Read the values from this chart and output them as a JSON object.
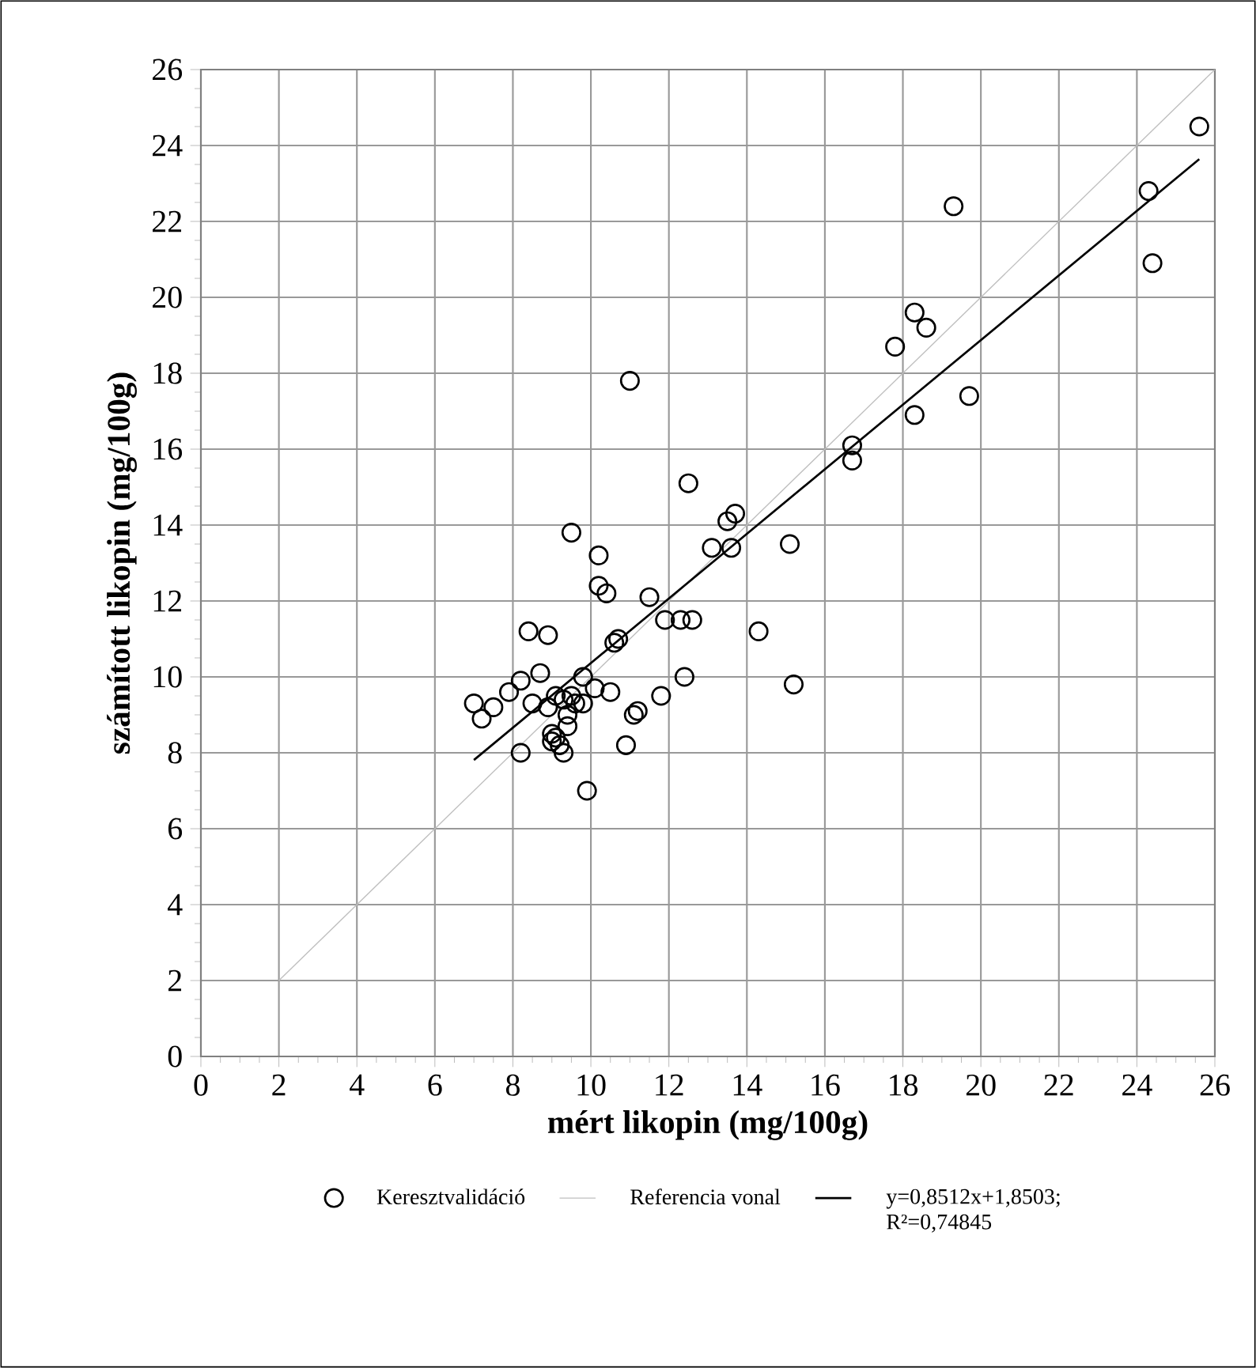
{
  "chart_data": {
    "type": "scatter",
    "xlabel": "mért likopin (mg/100g)",
    "ylabel": "számított likopin (mg/100g)",
    "xlim": [
      0,
      26
    ],
    "ylim": [
      0,
      26
    ],
    "xticks": [
      0,
      2,
      4,
      6,
      8,
      10,
      12,
      14,
      16,
      18,
      20,
      22,
      24,
      26
    ],
    "yticks": [
      0,
      2,
      4,
      6,
      8,
      10,
      12,
      14,
      16,
      18,
      20,
      22,
      24,
      26
    ],
    "grid": true,
    "legend": "bottom",
    "series": [
      {
        "name": "Keresztvalidáció",
        "type": "scatter",
        "marker": "circle",
        "color": "#000000",
        "x": [
          7.0,
          7.2,
          7.5,
          7.9,
          8.2,
          8.2,
          8.4,
          8.5,
          8.7,
          8.9,
          8.9,
          9.0,
          9.0,
          9.1,
          9.1,
          9.2,
          9.3,
          9.3,
          9.4,
          9.4,
          9.5,
          9.5,
          9.6,
          9.8,
          9.8,
          9.9,
          10.1,
          10.2,
          10.2,
          10.4,
          10.5,
          10.6,
          10.7,
          10.9,
          11.0,
          11.1,
          11.2,
          11.5,
          11.8,
          11.9,
          12.3,
          12.4,
          12.5,
          12.6,
          13.1,
          13.5,
          13.6,
          13.7,
          14.3,
          15.1,
          15.2,
          16.7,
          16.7,
          17.8,
          18.3,
          18.3,
          18.6,
          19.3,
          19.7,
          24.3,
          24.4,
          25.6
        ],
        "values": [
          9.3,
          8.9,
          9.2,
          9.6,
          9.9,
          8.0,
          11.2,
          9.3,
          10.1,
          11.1,
          9.2,
          8.5,
          8.3,
          8.4,
          9.5,
          8.2,
          8.0,
          9.4,
          9.0,
          8.7,
          9.5,
          13.8,
          9.3,
          10.0,
          9.3,
          7.0,
          9.7,
          13.2,
          12.4,
          12.2,
          9.6,
          10.9,
          11.0,
          8.2,
          17.8,
          9.0,
          9.1,
          12.1,
          9.5,
          11.5,
          11.5,
          10.0,
          15.1,
          11.5,
          13.4,
          14.1,
          13.4,
          14.3,
          11.2,
          13.5,
          9.8,
          16.1,
          15.7,
          18.7,
          19.6,
          16.9,
          19.2,
          22.4,
          17.4,
          22.8,
          20.9,
          24.5
        ]
      },
      {
        "name": "Referencia vonal",
        "type": "line",
        "marker": "none",
        "line_style": "solid",
        "color": "#bfbfbf",
        "x": [
          2,
          26
        ],
        "values": [
          2,
          26
        ]
      },
      {
        "name": "y=0,8512x+1,8503; R²=0,74845",
        "type": "line",
        "marker": "none",
        "line_style": "solid",
        "color": "#000000",
        "x": [
          7.0,
          25.6
        ],
        "values": [
          7.81,
          23.64
        ]
      }
    ]
  }
}
